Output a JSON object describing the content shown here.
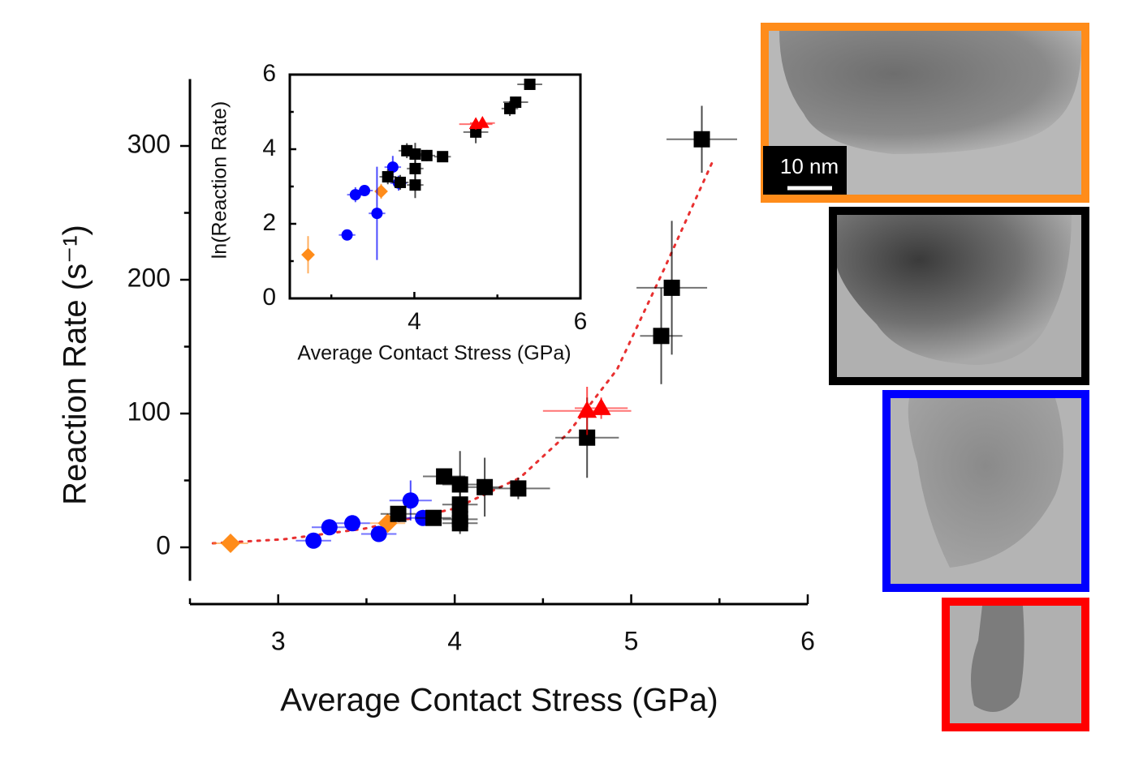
{
  "chart_data": [
    {
      "type": "scatter",
      "x_label": "Average Contact Stress (GPa)",
      "y_label": "Reaction Rate (s⁻¹)",
      "xlim": [
        2.5,
        6
      ],
      "xticks": [
        3,
        4,
        5,
        6
      ],
      "xminorticks": [
        2.5,
        3.5,
        4.5,
        5.5
      ],
      "ylim": [
        -25,
        350
      ],
      "yticks": [
        0,
        100,
        200,
        300
      ],
      "yminorticks": [
        50,
        150,
        250
      ],
      "series": [
        {
          "color": "#ff8c1a",
          "marker": "diamond",
          "x": [
            2.73,
            3.62
          ],
          "values": [
            3,
            18
          ],
          "xerr": [
            0.1,
            0.1
          ],
          "yerr": [
            2,
            5
          ]
        },
        {
          "color": "#0000ff",
          "marker": "circle",
          "x": [
            3.2,
            3.29,
            3.42,
            3.57,
            3.75,
            3.82
          ],
          "values": [
            5,
            15,
            18,
            10,
            35,
            22
          ],
          "xerr": [
            0.1,
            0.1,
            0.1,
            0.1,
            0.12,
            0.1
          ],
          "yerr": [
            3,
            3,
            3,
            3,
            15,
            5
          ]
        },
        {
          "color": "#000000",
          "marker": "square",
          "x": [
            3.68,
            3.88,
            3.94,
            4.03,
            4.03,
            4.03,
            4.03,
            4.17,
            4.36,
            4.75,
            5.17,
            5.23,
            5.4
          ],
          "values": [
            25,
            22,
            53,
            47,
            32,
            21,
            18,
            45,
            44,
            82,
            158,
            194,
            305
          ],
          "xerr": [
            0.1,
            0.1,
            0.12,
            0.1,
            0.1,
            0.1,
            0.1,
            0.1,
            0.18,
            0.18,
            0.12,
            0.2,
            0.2
          ],
          "yerr": [
            5,
            5,
            5,
            25,
            10,
            8,
            8,
            22,
            8,
            30,
            36,
            50,
            25
          ]
        },
        {
          "color": "#ff0000",
          "marker": "triangle",
          "x": [
            4.75,
            4.83
          ],
          "values": [
            102,
            104
          ],
          "xerr": [
            0.25,
            0.15
          ],
          "yerr": [
            18,
            8
          ]
        }
      ],
      "fit": {
        "color": "#e83030",
        "x": [
          2.63,
          3.03,
          3.49,
          4.0,
          4.37,
          4.64,
          4.92,
          5.19,
          5.47
        ],
        "values": [
          3,
          6,
          14,
          29,
          52,
          85,
          133,
          209,
          291
        ]
      }
    },
    {
      "type": "scatter",
      "x_label": "Average Contact Stress (GPa)",
      "y_label": "ln(Reaction Rate)",
      "xlim": [
        2.5,
        6
      ],
      "xticks": [
        4,
        6
      ],
      "xminorticks": [
        3,
        5
      ],
      "ylim": [
        0,
        6
      ],
      "yticks": [
        0,
        2,
        4,
        6
      ],
      "yminorticks": [
        1,
        3,
        5
      ],
      "series": [
        {
          "color": "#ff8c1a",
          "marker": "diamond",
          "x": [
            2.72,
            3.6
          ],
          "values": [
            1.17,
            2.87
          ],
          "xerr": [
            0.05,
            0.05
          ],
          "yerr": [
            0.5,
            0.2
          ]
        },
        {
          "color": "#0000ff",
          "marker": "circle",
          "x": [
            3.19,
            3.29,
            3.4,
            3.55,
            3.74,
            3.81
          ],
          "values": [
            1.7,
            2.78,
            2.89,
            2.28,
            3.52,
            3.09
          ],
          "xerr": [
            0.1,
            0.1,
            0.1,
            0.1,
            0.1,
            0.1
          ],
          "yerr": [
            0.1,
            0.2,
            0.15,
            1.25,
            0.3,
            0.2
          ]
        },
        {
          "color": "#000000",
          "marker": "square",
          "x": [
            3.68,
            3.83,
            3.91,
            4.01,
            4.01,
            4.01,
            4.15,
            4.34,
            4.74,
            5.15,
            5.22,
            5.39
          ],
          "values": [
            3.26,
            3.11,
            3.96,
            3.87,
            3.48,
            3.04,
            3.83,
            3.8,
            4.46,
            5.09,
            5.26,
            5.74
          ],
          "xerr": [
            0.1,
            0.1,
            0.1,
            0.1,
            0.1,
            0.1,
            0.1,
            0.1,
            0.15,
            0.1,
            0.15,
            0.15
          ],
          "yerr": [
            0.2,
            0.2,
            0.2,
            0.3,
            0.3,
            0.35,
            0.15,
            0.1,
            0.3,
            0.2,
            0.15,
            0.1
          ]
        },
        {
          "color": "#ff0000",
          "marker": "triangle",
          "x": [
            4.74,
            4.82
          ],
          "values": [
            4.67,
            4.7
          ],
          "xerr": [
            0.2,
            0.15
          ],
          "yerr": [
            0.15,
            0.1
          ]
        }
      ]
    }
  ],
  "images": {
    "scale_bar": "10 nm"
  }
}
